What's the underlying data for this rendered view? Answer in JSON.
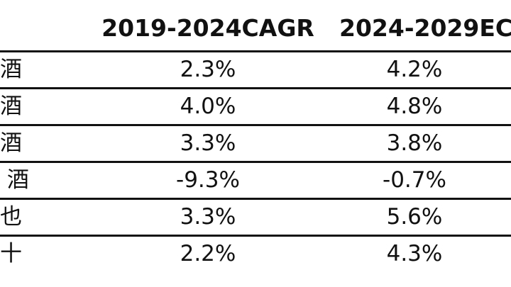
{
  "header": {
    "col_a": "2019-2024CAGR",
    "col_b": "2024-2029EC"
  },
  "rows": [
    {
      "label": "酒",
      "a": "2.3%",
      "b": "4.2%"
    },
    {
      "label": "酒",
      "a": "4.0%",
      "b": "4.8%"
    },
    {
      "label": "酒",
      "a": "3.3%",
      "b": "3.8%"
    },
    {
      "label": " 酒",
      "a": "-9.3%",
      "b": "-0.7%"
    },
    {
      "label": "也",
      "a": "3.3%",
      "b": "5.6%"
    },
    {
      "label": "十",
      "a": "2.2%",
      "b": "4.3%"
    }
  ]
}
